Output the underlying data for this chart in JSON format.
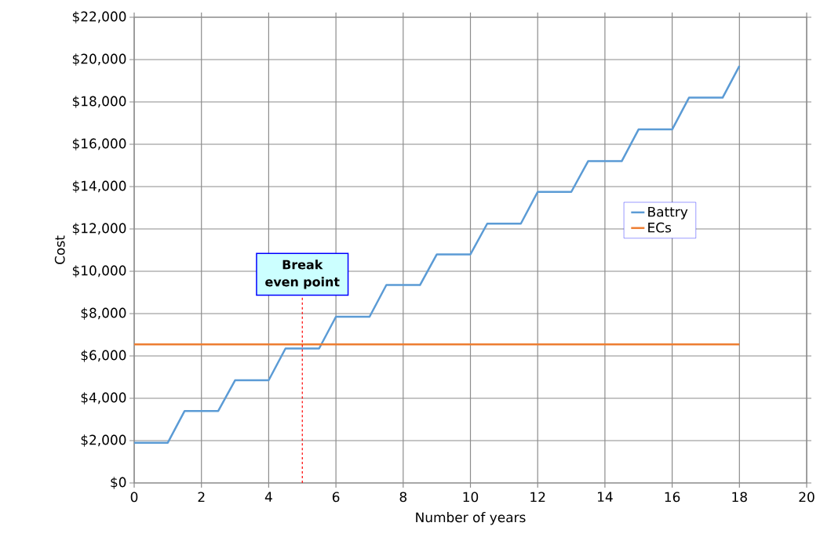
{
  "chart_data": {
    "type": "line",
    "xlabel": "Number of years",
    "ylabel": "Cost",
    "series": [
      {
        "name": "Battry",
        "color": "#5b9bd5",
        "x": [
          0,
          1,
          1.5,
          2.5,
          3,
          4,
          4.5,
          5.5,
          6,
          7,
          7.5,
          8.5,
          9,
          10,
          10.5,
          11.5,
          12,
          13,
          13.5,
          14.5,
          15,
          16,
          16.5,
          17.5,
          18
        ],
        "values": [
          1900,
          1900,
          3400,
          3400,
          4850,
          4850,
          6350,
          6350,
          7850,
          7850,
          9350,
          9350,
          10800,
          10800,
          12250,
          12250,
          13750,
          13750,
          15200,
          15200,
          16700,
          16700,
          18200,
          18200,
          19700
        ]
      },
      {
        "name": "ECs",
        "color": "#ed7d31",
        "x": [
          0,
          18
        ],
        "values": [
          6550,
          6550
        ]
      }
    ],
    "xlim": [
      0,
      20
    ],
    "xticks": [
      0,
      2,
      4,
      6,
      8,
      10,
      12,
      14,
      16,
      18,
      20
    ],
    "ylim": [
      0,
      22000
    ],
    "yticks": [
      {
        "value": 0,
        "label": "$0"
      },
      {
        "value": 2000,
        "label": "$2,000"
      },
      {
        "value": 4000,
        "label": "$4,000"
      },
      {
        "value": 6000,
        "label": "$6,000"
      },
      {
        "value": 8000,
        "label": "$8,000"
      },
      {
        "value": 10000,
        "label": "$10,000"
      },
      {
        "value": 12000,
        "label": "$12,000"
      },
      {
        "value": 14000,
        "label": "$14,000"
      },
      {
        "value": 16000,
        "label": "$16,000"
      },
      {
        "value": 18000,
        "label": "$18,000"
      },
      {
        "value": 20000,
        "label": "$20,000"
      },
      {
        "value": 22000,
        "label": "$22,000"
      }
    ],
    "ref_lines": [
      {
        "axis": "x",
        "value": 5,
        "label": "Break even point",
        "color": "#ff0000",
        "line_style": "dashed"
      }
    ],
    "grid": true,
    "legend": "right"
  }
}
